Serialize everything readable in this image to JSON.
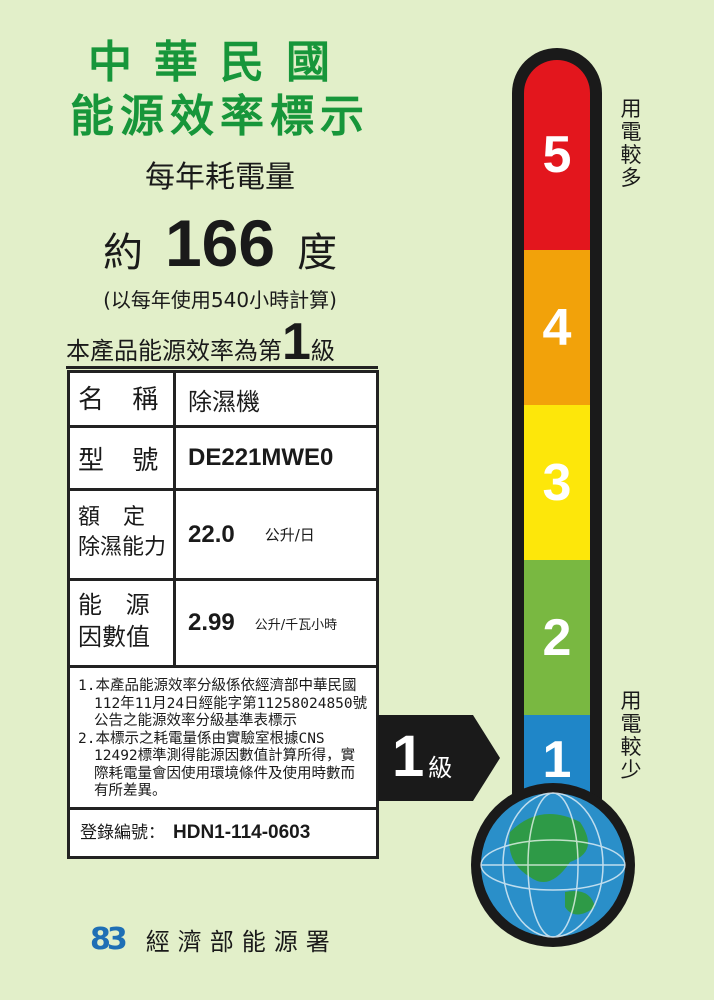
{
  "title": {
    "line1": "中華民國",
    "line2": "能源效率標示"
  },
  "annual_label": "每年耗電量",
  "consumption": {
    "prefix": "約",
    "value": "166",
    "unit": "度",
    "basis": "(以每年使用540小時計算)"
  },
  "grade_statement": {
    "text": "本產品能源效率為第",
    "grade": "1",
    "suffix": "級"
  },
  "table": {
    "name": {
      "label": "名 稱",
      "value": "除濕機"
    },
    "model": {
      "label": "型 號",
      "value": "DE221MWE0"
    },
    "capacity": {
      "label1": "額 定",
      "label2": "除濕能力",
      "value": "22.0",
      "unit": "公升/日"
    },
    "factor": {
      "label1": "能 源",
      "label2": "因數值",
      "value": "2.99",
      "unit": "公升/千瓦小時"
    }
  },
  "notes": [
    "1.本產品能源效率分級係依經濟部中華民國112年11月24日經能字第11258024850號公告之能源效率分級基準表標示",
    "2.本標示之耗電量係由實驗室根據CNS 12492標準測得能源因數值計算所得，實際耗電量會因使用環境條件及使用時數而有所差異。"
  ],
  "registration": {
    "label": "登錄編號：",
    "value": "HDN1-114-0603"
  },
  "scale": {
    "levels": [
      {
        "label": "5",
        "color": "#e3161d"
      },
      {
        "label": "4",
        "color": "#f2a20a"
      },
      {
        "label": "3",
        "color": "#fde70a"
      },
      {
        "label": "2",
        "color": "#79b841"
      },
      {
        "label": "1",
        "color": "#1f86c8"
      }
    ],
    "top_caption": "用電較多",
    "bottom_caption": "用電較少"
  },
  "pointer": {
    "grade": "1",
    "suffix": "級"
  },
  "agency": {
    "logo_text": "83",
    "name": "經濟部能源署"
  }
}
